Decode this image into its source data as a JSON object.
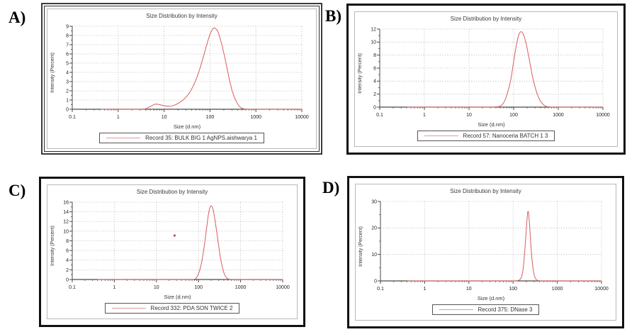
{
  "colors": {
    "curve": "#d95c5c",
    "legend_line": "#e39a9a",
    "outlier": "#a03232",
    "grid": "#aaaaaa",
    "axis": "#4a4a4a"
  },
  "chart_data": [
    {
      "type": "line",
      "panel_label": "A)",
      "title": "Size Distribution by Intensity",
      "xlabel": "Size (d.nm)",
      "ylabel": "Intensity (Percent)",
      "legend": "Record 35: BULK BIG 1 AgNPS.aishwarya 1",
      "xscale": "log",
      "xmin": 0.1,
      "xmax": 10000,
      "ymax": 9,
      "ytick_step": 1,
      "xticks": [
        0.1,
        1,
        10,
        100,
        1000,
        10000
      ],
      "peak": {
        "x": 120,
        "y": 8.8
      },
      "points": [
        [
          0.4,
          0
        ],
        [
          1,
          0
        ],
        [
          2,
          0
        ],
        [
          3,
          0
        ],
        [
          4,
          0.05
        ],
        [
          5,
          0.3
        ],
        [
          6.5,
          0.55
        ],
        [
          8,
          0.5
        ],
        [
          10,
          0.38
        ],
        [
          13,
          0.33
        ],
        [
          17,
          0.45
        ],
        [
          22,
          0.75
        ],
        [
          30,
          1.3
        ],
        [
          40,
          2.2
        ],
        [
          55,
          3.8
        ],
        [
          70,
          5.5
        ],
        [
          85,
          7.0
        ],
        [
          100,
          8.1
        ],
        [
          120,
          8.8
        ],
        [
          145,
          8.5
        ],
        [
          175,
          7.3
        ],
        [
          210,
          5.6
        ],
        [
          250,
          3.8
        ],
        [
          300,
          2.1
        ],
        [
          370,
          0.9
        ],
        [
          450,
          0.25
        ],
        [
          550,
          0.04
        ],
        [
          700,
          0
        ],
        [
          1000,
          0
        ],
        [
          3000,
          0
        ],
        [
          10000,
          0
        ]
      ]
    },
    {
      "type": "line",
      "panel_label": "B)",
      "title": "Size Distribution by Intensity",
      "xlabel": "Size (d.nm)",
      "ylabel": "Intensity (Percent)",
      "legend": "Record 57: Nanoceria BATCH 1 3",
      "xscale": "log",
      "xmin": 0.1,
      "xmax": 10000,
      "ymax": 12,
      "ytick_step": 2,
      "xticks": [
        0.1,
        1,
        10,
        100,
        1000,
        10000
      ],
      "peak": {
        "x": 145,
        "y": 11.6
      },
      "points": [
        [
          0.4,
          0
        ],
        [
          1,
          0
        ],
        [
          3,
          0
        ],
        [
          10,
          0
        ],
        [
          20,
          0
        ],
        [
          30,
          0
        ],
        [
          40,
          0.02
        ],
        [
          50,
          0.15
        ],
        [
          60,
          0.7
        ],
        [
          70,
          1.8
        ],
        [
          85,
          4.0
        ],
        [
          100,
          7.0
        ],
        [
          115,
          9.5
        ],
        [
          130,
          11.1
        ],
        [
          145,
          11.6
        ],
        [
          165,
          11.2
        ],
        [
          190,
          9.8
        ],
        [
          220,
          7.6
        ],
        [
          260,
          5.0
        ],
        [
          310,
          2.8
        ],
        [
          380,
          1.2
        ],
        [
          460,
          0.4
        ],
        [
          560,
          0.08
        ],
        [
          700,
          0
        ],
        [
          1000,
          0
        ],
        [
          3000,
          0
        ],
        [
          10000,
          0
        ]
      ]
    },
    {
      "type": "line",
      "panel_label": "C)",
      "title": "Size Distribution by Intensity",
      "xlabel": "Size (d.nm)",
      "ylabel": "Intensity (Percent)",
      "legend": "Record 332: PDA SON TWICE 2",
      "xscale": "log",
      "xmin": 0.1,
      "xmax": 10000,
      "ymax": 16,
      "ytick_step": 2,
      "xticks": [
        0.1,
        1,
        10,
        100,
        1000,
        10000
      ],
      "peak": {
        "x": 195,
        "y": 15.2
      },
      "outlier": [
        27,
        9.1
      ],
      "points": [
        [
          0.4,
          0
        ],
        [
          1,
          0
        ],
        [
          10,
          0
        ],
        [
          50,
          0
        ],
        [
          70,
          0
        ],
        [
          80,
          0.05
        ],
        [
          90,
          0.4
        ],
        [
          100,
          1.2
        ],
        [
          115,
          3.0
        ],
        [
          135,
          6.5
        ],
        [
          155,
          10.5
        ],
        [
          175,
          13.8
        ],
        [
          195,
          15.2
        ],
        [
          220,
          14.6
        ],
        [
          250,
          12.0
        ],
        [
          290,
          8.0
        ],
        [
          340,
          4.0
        ],
        [
          400,
          1.4
        ],
        [
          470,
          0.3
        ],
        [
          550,
          0.05
        ],
        [
          650,
          0
        ],
        [
          1000,
          0
        ],
        [
          3000,
          0
        ],
        [
          10000,
          0
        ]
      ]
    },
    {
      "type": "line",
      "panel_label": "D)",
      "title": "Size Distribution by Intensity",
      "xlabel": "Size (d.nm)",
      "ylabel": "Intensity (Percent)",
      "legend": "Record 375: DNase 3",
      "xscale": "log",
      "xmin": 0.1,
      "xmax": 10000,
      "ymax": 30,
      "ytick_step": 10,
      "xticks": [
        0.1,
        1,
        10,
        100,
        1000,
        10000
      ],
      "peak": {
        "x": 215,
        "y": 26
      },
      "points": [
        [
          0.4,
          0
        ],
        [
          1,
          0
        ],
        [
          10,
          0
        ],
        [
          100,
          0
        ],
        [
          120,
          0.05
        ],
        [
          140,
          0.4
        ],
        [
          155,
          1.5
        ],
        [
          170,
          5
        ],
        [
          185,
          12
        ],
        [
          200,
          20
        ],
        [
          215,
          26
        ],
        [
          228,
          24.5
        ],
        [
          245,
          17
        ],
        [
          265,
          9
        ],
        [
          290,
          3.5
        ],
        [
          320,
          1.0
        ],
        [
          360,
          0.2
        ],
        [
          420,
          0
        ],
        [
          600,
          0
        ],
        [
          1000,
          0
        ],
        [
          3000,
          0
        ],
        [
          10000,
          0
        ]
      ]
    }
  ]
}
